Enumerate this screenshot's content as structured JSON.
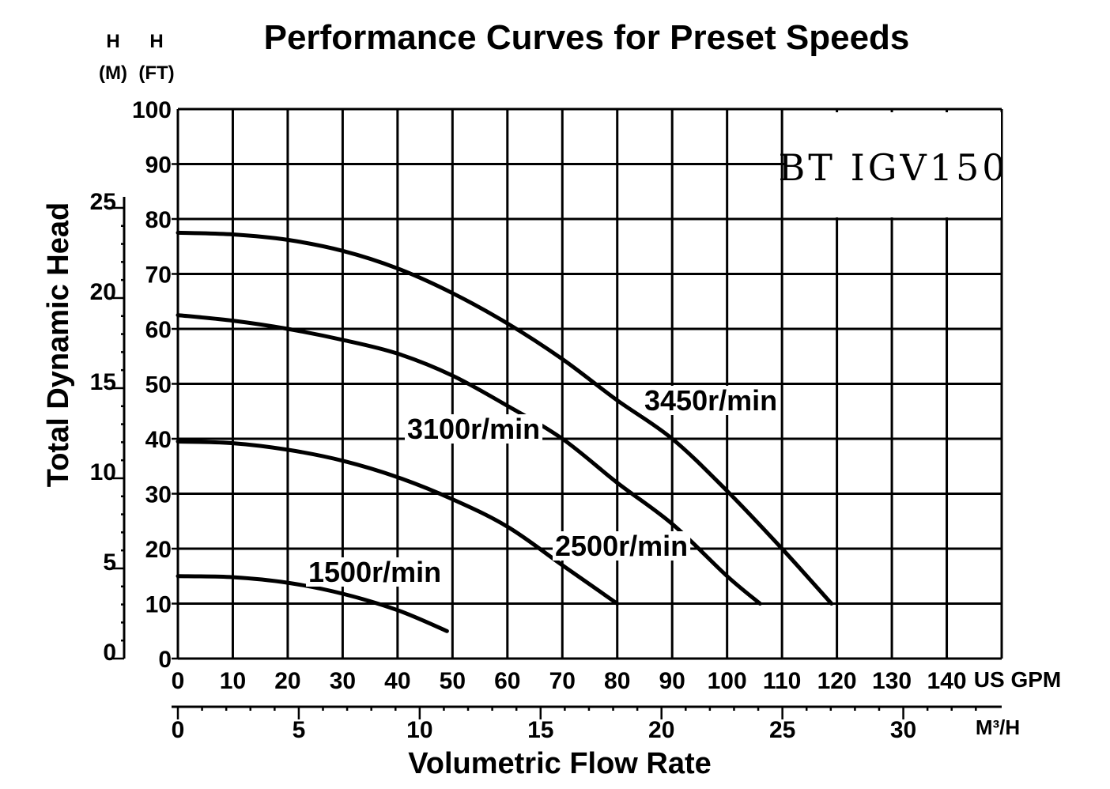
{
  "chart_data": {
    "type": "line",
    "title": "Performance Curves for Preset Speeds",
    "model_label": "BT IGV150",
    "xlabel": "Volumetric Flow Rate",
    "ylabel": "Total Dynamic Head",
    "x_unit_primary": "US GPM",
    "x_unit_secondary": "M³/H",
    "y_unit_left_metric": {
      "symbol": "H",
      "unit": "(M)"
    },
    "y_unit_left_imperial": {
      "symbol": "H",
      "unit": "(FT)"
    },
    "x_ticks_gpm": [
      "0",
      "10",
      "20",
      "30",
      "40",
      "50",
      "60",
      "70",
      "80",
      "90",
      "100",
      "110",
      "120",
      "130",
      "140"
    ],
    "x_ticks_m3h": [
      "0",
      "5",
      "10",
      "15",
      "20",
      "25",
      "30"
    ],
    "y_ticks_ft": [
      "0",
      "10",
      "20",
      "30",
      "40",
      "50",
      "60",
      "70",
      "80",
      "90",
      "100"
    ],
    "y_ticks_m": [
      "0",
      "5",
      "10",
      "15",
      "20",
      "25"
    ],
    "xlim_gpm": [
      0,
      150
    ],
    "ylim_ft": [
      0,
      100
    ],
    "grid": true,
    "series": [
      {
        "name": "3450r/min",
        "x": [
          0,
          10,
          20,
          30,
          40,
          50,
          60,
          70,
          80,
          90,
          100,
          110,
          119
        ],
        "y": [
          77.5,
          77.2,
          76.2,
          74.2,
          71,
          66.5,
          61,
          54.5,
          47,
          40,
          30.5,
          20,
          10
        ]
      },
      {
        "name": "3100r/min",
        "x": [
          0,
          10,
          20,
          30,
          40,
          50,
          60,
          70,
          80,
          90,
          100,
          106
        ],
        "y": [
          62.5,
          61.5,
          60,
          58,
          55.5,
          51.5,
          46,
          40,
          32,
          24.5,
          15,
          10
        ]
      },
      {
        "name": "2500r/min",
        "x": [
          0,
          10,
          20,
          30,
          40,
          50,
          60,
          70,
          80
        ],
        "y": [
          39.5,
          39.2,
          38,
          36,
          33,
          29,
          24,
          17,
          10
        ]
      },
      {
        "name": "1500r/min",
        "x": [
          0,
          10,
          20,
          30,
          40,
          49
        ],
        "y": [
          15,
          14.8,
          13.8,
          11.8,
          8.8,
          5
        ]
      }
    ]
  }
}
